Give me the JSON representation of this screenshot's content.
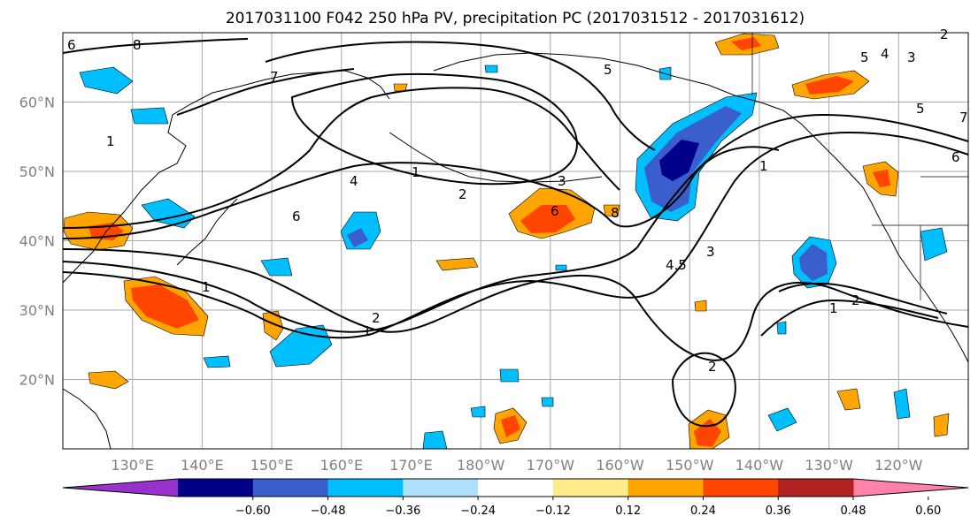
{
  "title": "2017031100 F042 250 hPa PV, precipitation PC (2017031512 - 2017031612)",
  "map": {
    "lon_range": [
      120,
      250
    ],
    "lat_range": [
      10,
      70
    ],
    "lon_ticks": [
      "130°E",
      "140°E",
      "150°E",
      "160°E",
      "170°E",
      "180°W",
      "170°W",
      "160°W",
      "150°W",
      "140°W",
      "130°W",
      "120°W"
    ],
    "lat_ticks": [
      "20°N",
      "30°N",
      "40°N",
      "50°N",
      "60°N"
    ],
    "grid": true,
    "coastline_color": "#000000"
  },
  "colorbar": {
    "colors": [
      "#9932cc",
      "#00008b",
      "#3a5fcd",
      "#00bfff",
      "#b0e2ff",
      "#ffffff",
      "#ffec8b",
      "#ffa500",
      "#ff4500",
      "#b22222",
      "#ff82ab"
    ],
    "tick_labels": [
      "−0.60",
      "−0.48",
      "−0.36",
      "−0.24",
      "−0.12",
      "0.12",
      "0.24",
      "0.36",
      "0.48",
      "0.60"
    ],
    "extend": "both"
  },
  "pv_contour_labels": [
    "8",
    "7",
    "1",
    "2",
    "4",
    "6",
    "1",
    "2",
    "3",
    "6",
    "8",
    "1",
    "3",
    "4.5",
    "5",
    "6",
    "7",
    "1",
    "2",
    "1",
    "2",
    "2",
    "1",
    "5",
    "4",
    "3",
    "5",
    "6"
  ]
}
